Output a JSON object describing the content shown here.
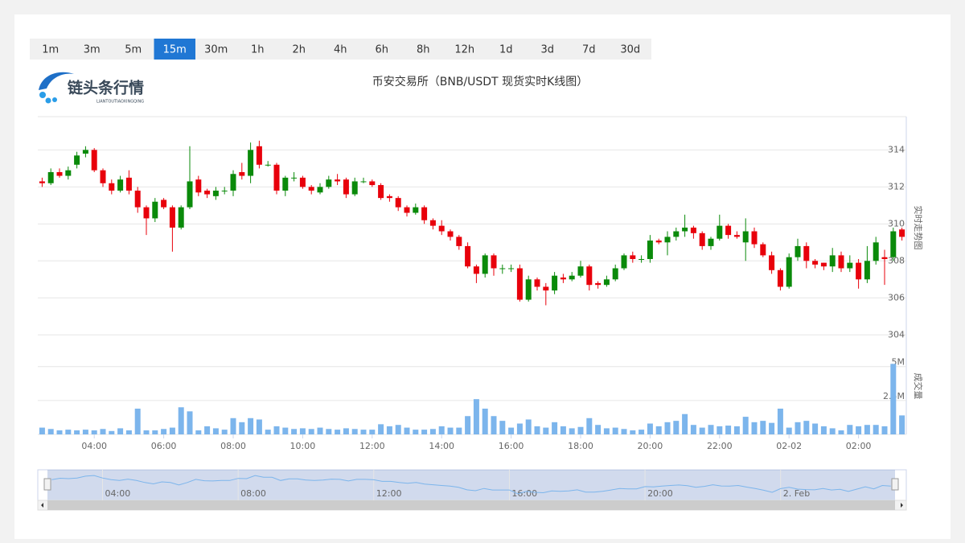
{
  "logo": {
    "name": "链头条行情",
    "subtitle": "LIANTOUTIAOXINGQING"
  },
  "range_buttons": [
    "1m",
    "3m",
    "5m",
    "15m",
    "30m",
    "1h",
    "2h",
    "4h",
    "6h",
    "8h",
    "12h",
    "1d",
    "3d",
    "7d",
    "30d"
  ],
  "selected_button": 3,
  "chart_data": {
    "type": "candlestick",
    "title": "币安交易所（BNB/USDT 现货实时K线图）",
    "y_title": "实时走势图",
    "volume_title": "成交量",
    "up_color": "#0a8a0a",
    "down_color": "#e8000b",
    "volume_color": "#7cb5ec",
    "xlim": [
      -0.5,
      99.5
    ],
    "xticks": [
      {
        "value": 6,
        "label": "04:00"
      },
      {
        "value": 14,
        "label": "06:00"
      },
      {
        "value": 22,
        "label": "08:00"
      },
      {
        "value": 30,
        "label": "10:00"
      },
      {
        "value": 38,
        "label": "12:00"
      },
      {
        "value": 46,
        "label": "14:00"
      },
      {
        "value": 54,
        "label": "16:00"
      },
      {
        "value": 62,
        "label": "18:00"
      },
      {
        "value": 70,
        "label": "20:00"
      },
      {
        "value": 78,
        "label": "22:00"
      },
      {
        "value": 86,
        "label": "02-02"
      },
      {
        "value": 94,
        "label": "02:00"
      }
    ],
    "ylim": [
      303.75,
      315.8
    ],
    "yticks": [
      304,
      306,
      308,
      310,
      312,
      314
    ],
    "volume_ylim": [
      0,
      7
    ],
    "volume_ticks": [
      0,
      {
        "value": 2.5,
        "label": "2.5M"
      },
      {
        "value": 5,
        "label": "5M"
      }
    ],
    "open": [
      312.3,
      312.2,
      312.8,
      312.6,
      313.2,
      313.8,
      314.0,
      312.9,
      312.2,
      311.8,
      312.5,
      311.8,
      310.9,
      310.3,
      311.3,
      310.9,
      309.8,
      310.9,
      312.4,
      311.8,
      311.5,
      311.8,
      311.8,
      312.8,
      312.6,
      314.2,
      313.2,
      313.2,
      311.8,
      312.5,
      312.5,
      312.0,
      311.7,
      312.0,
      312.4,
      312.4,
      311.6,
      312.3,
      312.3,
      312.1,
      311.5,
      311.4,
      310.9,
      310.6,
      310.9,
      310.2,
      309.9,
      309.6,
      309.3,
      308.8,
      307.7,
      307.3,
      308.3,
      307.6,
      307.6,
      307.6,
      305.9,
      307.0,
      306.6,
      306.4,
      307.1,
      307.0,
      307.2,
      307.7,
      306.8,
      306.7,
      307.0,
      307.6,
      308.3,
      308.1,
      308.1,
      309.1,
      309.0,
      309.3,
      309.6,
      309.8,
      309.5,
      308.8,
      309.2,
      309.9,
      309.4,
      309.0,
      309.6,
      308.9,
      308.3,
      307.5,
      306.6,
      308.2,
      308.8,
      308.0,
      307.9,
      307.7,
      308.3,
      307.6,
      307.9,
      307.0,
      308.0,
      308.2,
      308.2,
      309.7
    ],
    "high": [
      312.5,
      313.0,
      313.0,
      313.1,
      313.9,
      314.2,
      314.1,
      313.0,
      312.4,
      312.6,
      312.9,
      312.0,
      311.0,
      311.4,
      311.4,
      311.0,
      311.0,
      314.2,
      312.6,
      311.9,
      312.0,
      312.0,
      312.9,
      313.3,
      314.4,
      314.5,
      313.4,
      313.3,
      312.6,
      312.8,
      312.6,
      312.1,
      312.2,
      312.6,
      312.7,
      312.5,
      312.5,
      312.5,
      312.4,
      312.2,
      311.6,
      311.5,
      311.0,
      311.1,
      311.0,
      310.3,
      310.2,
      309.7,
      309.4,
      309.0,
      307.8,
      308.4,
      308.4,
      307.8,
      307.8,
      307.8,
      307.2,
      307.1,
      306.8,
      307.4,
      307.3,
      307.4,
      308.0,
      307.8,
      306.9,
      307.2,
      307.8,
      308.4,
      308.5,
      308.3,
      309.4,
      309.2,
      309.6,
      309.8,
      310.5,
      309.9,
      309.6,
      309.3,
      310.5,
      310.0,
      309.6,
      310.3,
      309.8,
      309.0,
      308.5,
      307.6,
      308.4,
      309.2,
      309.0,
      308.1,
      307.9,
      308.7,
      308.5,
      308.3,
      308.1,
      308.8,
      309.3,
      308.6,
      309.8,
      309.8
    ],
    "low": [
      312.0,
      312.1,
      312.5,
      312.4,
      313.0,
      313.6,
      312.8,
      312.0,
      311.6,
      311.7,
      311.6,
      310.6,
      309.4,
      310.1,
      310.8,
      308.5,
      309.7,
      310.8,
      311.5,
      311.4,
      311.3,
      311.6,
      311.5,
      312.4,
      312.2,
      313.0,
      313.1,
      311.6,
      311.5,
      312.3,
      311.9,
      311.6,
      311.6,
      311.9,
      312.1,
      311.4,
      311.5,
      312.2,
      312.0,
      311.3,
      311.2,
      310.7,
      310.4,
      310.5,
      310.0,
      309.7,
      309.4,
      309.1,
      308.6,
      307.6,
      306.8,
      307.1,
      307.2,
      307.3,
      307.4,
      305.8,
      305.8,
      306.4,
      305.6,
      306.2,
      306.8,
      306.9,
      307.1,
      306.4,
      306.5,
      306.6,
      306.9,
      307.5,
      307.9,
      307.9,
      307.9,
      308.9,
      308.3,
      309.1,
      309.3,
      309.2,
      308.6,
      308.6,
      309.1,
      309.2,
      309.2,
      308.0,
      308.7,
      308.2,
      307.3,
      306.4,
      306.5,
      308.0,
      307.6,
      307.6,
      307.5,
      307.4,
      307.4,
      307.4,
      306.5,
      306.8,
      307.8,
      306.7,
      308.0,
      309.1
    ],
    "close": [
      312.2,
      312.8,
      312.6,
      312.9,
      313.7,
      314.0,
      312.9,
      312.2,
      311.8,
      312.4,
      311.8,
      310.9,
      310.3,
      311.2,
      310.9,
      309.8,
      310.9,
      312.3,
      311.7,
      311.6,
      311.8,
      311.8,
      312.7,
      312.6,
      314.0,
      313.2,
      313.2,
      311.8,
      312.5,
      312.5,
      312.0,
      311.8,
      312.0,
      312.4,
      312.3,
      311.6,
      312.3,
      312.3,
      312.1,
      311.4,
      311.4,
      310.9,
      310.6,
      310.9,
      310.2,
      309.9,
      309.6,
      309.3,
      308.8,
      307.7,
      307.3,
      308.3,
      307.6,
      307.6,
      307.6,
      305.9,
      307.0,
      306.6,
      306.4,
      307.2,
      307.0,
      307.2,
      307.7,
      306.7,
      306.7,
      307.0,
      307.6,
      308.3,
      308.1,
      308.1,
      309.1,
      309.0,
      309.3,
      309.6,
      309.8,
      309.5,
      308.8,
      309.2,
      309.9,
      309.4,
      309.3,
      309.6,
      308.9,
      308.3,
      307.5,
      306.6,
      308.2,
      308.8,
      308.0,
      307.8,
      307.7,
      308.3,
      307.6,
      307.9,
      307.0,
      308.0,
      309.0,
      308.1,
      309.6,
      309.3
    ],
    "volume": [
      0.5,
      0.4,
      0.3,
      0.35,
      0.3,
      0.35,
      0.3,
      0.4,
      0.25,
      0.45,
      0.3,
      1.9,
      0.3,
      0.3,
      0.4,
      0.5,
      2.0,
      1.7,
      0.3,
      0.6,
      0.45,
      0.35,
      1.2,
      0.9,
      1.2,
      1.1,
      0.35,
      0.6,
      0.5,
      0.4,
      0.45,
      0.4,
      0.5,
      0.4,
      0.35,
      0.45,
      0.4,
      0.35,
      0.35,
      0.75,
      0.6,
      0.7,
      0.5,
      0.35,
      0.35,
      0.4,
      0.6,
      0.5,
      0.5,
      1.35,
      2.6,
      1.9,
      1.35,
      1.0,
      0.5,
      0.8,
      1.1,
      0.6,
      0.5,
      0.9,
      0.6,
      0.45,
      0.55,
      1.2,
      0.7,
      0.45,
      0.5,
      0.4,
      0.3,
      0.35,
      0.8,
      0.6,
      0.9,
      1.0,
      1.5,
      0.7,
      0.5,
      0.7,
      0.6,
      0.65,
      0.6,
      1.3,
      0.9,
      1.0,
      0.85,
      1.9,
      0.5,
      0.9,
      1.0,
      0.8,
      0.6,
      0.45,
      0.3,
      0.7,
      0.6,
      0.7,
      0.7,
      0.6,
      5.2,
      1.4
    ],
    "navigator": {
      "xticks": [
        {
          "value": 6,
          "label": "04:00"
        },
        {
          "value": 22,
          "label": "08:00"
        },
        {
          "value": 38,
          "label": "12:00"
        },
        {
          "value": 54,
          "label": "16:00"
        },
        {
          "value": 70,
          "label": "20:00"
        },
        {
          "value": 86,
          "label": "2. Feb"
        }
      ]
    }
  }
}
